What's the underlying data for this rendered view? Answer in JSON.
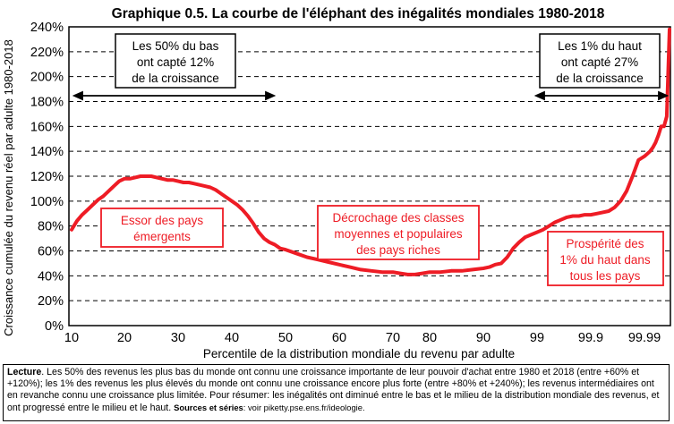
{
  "chart_data": {
    "type": "line",
    "title": "Graphique 0.5. La courbe de l'éléphant des inégalités mondiales 1980-2018",
    "xlabel": "Percentile de la distribution mondiale du revenu par adulte",
    "ylabel": "Croissance cumulée du revenu réel par adulte 1980-2018",
    "x_tick_labels": [
      "10",
      "20",
      "30",
      "40",
      "50",
      "60",
      "70",
      "80",
      "90",
      "99",
      "99.9",
      "99.99"
    ],
    "y_tick_labels": [
      "0%",
      "20%",
      "40%",
      "60%",
      "80%",
      "100%",
      "120%",
      "140%",
      "160%",
      "180%",
      "200%",
      "220%",
      "240%"
    ],
    "ylim": [
      0,
      240
    ],
    "grid": "horizontal dashed",
    "series": [
      {
        "color": "#ee1c25",
        "x": [
          10,
          11,
          12,
          13,
          14,
          15,
          16,
          17,
          18,
          19,
          20,
          21,
          22,
          23,
          24,
          25,
          26,
          27,
          28,
          29,
          30,
          31,
          32,
          33,
          34,
          35,
          36,
          37,
          38,
          39,
          40,
          41,
          42,
          43,
          44,
          45,
          46,
          47,
          48,
          49,
          50,
          52,
          54,
          56,
          58,
          60,
          62,
          64,
          66,
          68,
          70,
          72,
          74,
          76,
          78,
          80,
          82,
          84,
          86,
          88,
          90,
          91,
          92,
          93,
          94,
          95,
          96,
          97,
          98,
          99,
          99.1,
          99.2,
          99.3,
          99.4,
          99.5,
          99.6,
          99.7,
          99.8,
          99.9,
          99.91,
          99.92,
          99.93,
          99.94,
          99.95,
          99.96,
          99.97,
          99.98,
          99.99,
          99.991,
          99.992,
          99.993,
          99.994,
          99.995,
          99.996,
          99.997,
          99.998,
          99.999
        ],
        "y": [
          77,
          84,
          89,
          93,
          97,
          101,
          104,
          108,
          112,
          116,
          118,
          118,
          119,
          120,
          120,
          120,
          119,
          118,
          117,
          117,
          116,
          115,
          115,
          114,
          113,
          112,
          111,
          109,
          106,
          103,
          100,
          97,
          93,
          88,
          82,
          75,
          70,
          67,
          65,
          62,
          61,
          58,
          55,
          53,
          51,
          49,
          47,
          45,
          44,
          43,
          43,
          42,
          41,
          41,
          42,
          43,
          43,
          44,
          44,
          45,
          46,
          47,
          49,
          50,
          55,
          62,
          67,
          71,
          73,
          75,
          77,
          80,
          83,
          85,
          87,
          88,
          88,
          89,
          89,
          90,
          91,
          92,
          95,
          100,
          108,
          120,
          133,
          136,
          138,
          140,
          143,
          147,
          153,
          160,
          160,
          168,
          238
        ]
      }
    ],
    "annotations": {
      "bottom50": [
        "Les 50% du bas",
        "ont capté 12%",
        "de la croissance"
      ],
      "top1": [
        "Les 1% du haut",
        "ont capté 27%",
        "de la croissance"
      ],
      "emerging": [
        "Essor des pays",
        "émergents"
      ],
      "middle": [
        "Décrochage des classes",
        "moyennes et populaires",
        "des pays riches"
      ],
      "top": [
        "Prospérité des",
        "1% du haut dans",
        "tous les pays"
      ]
    }
  },
  "caption": {
    "lead": "Lecture",
    "body": ". Les 50% des revenus les plus bas du monde ont connu une croissance importante de leur pouvoir d'achat entre 1980 et 2018 (entre +60% et +120%); les 1% des revenus les plus élevés du monde ont connu une croissance encore plus forte (entre +80% et +240%); les revenus intermédiaires ont en revanche connu une croissance plus limitée. Pour résumer: les inégalités ont diminué entre le bas et le milieu de la distribution mondiale des revenus, et ont progressé entre le milieu et le haut.",
    "sources_label": "Sources et séries",
    "sources_text": ": voir piketty.pse.ens.fr/ideologie."
  },
  "colors": {
    "line": "#ee1c25",
    "text_red": "#ee1c25",
    "frame": "#000000"
  }
}
